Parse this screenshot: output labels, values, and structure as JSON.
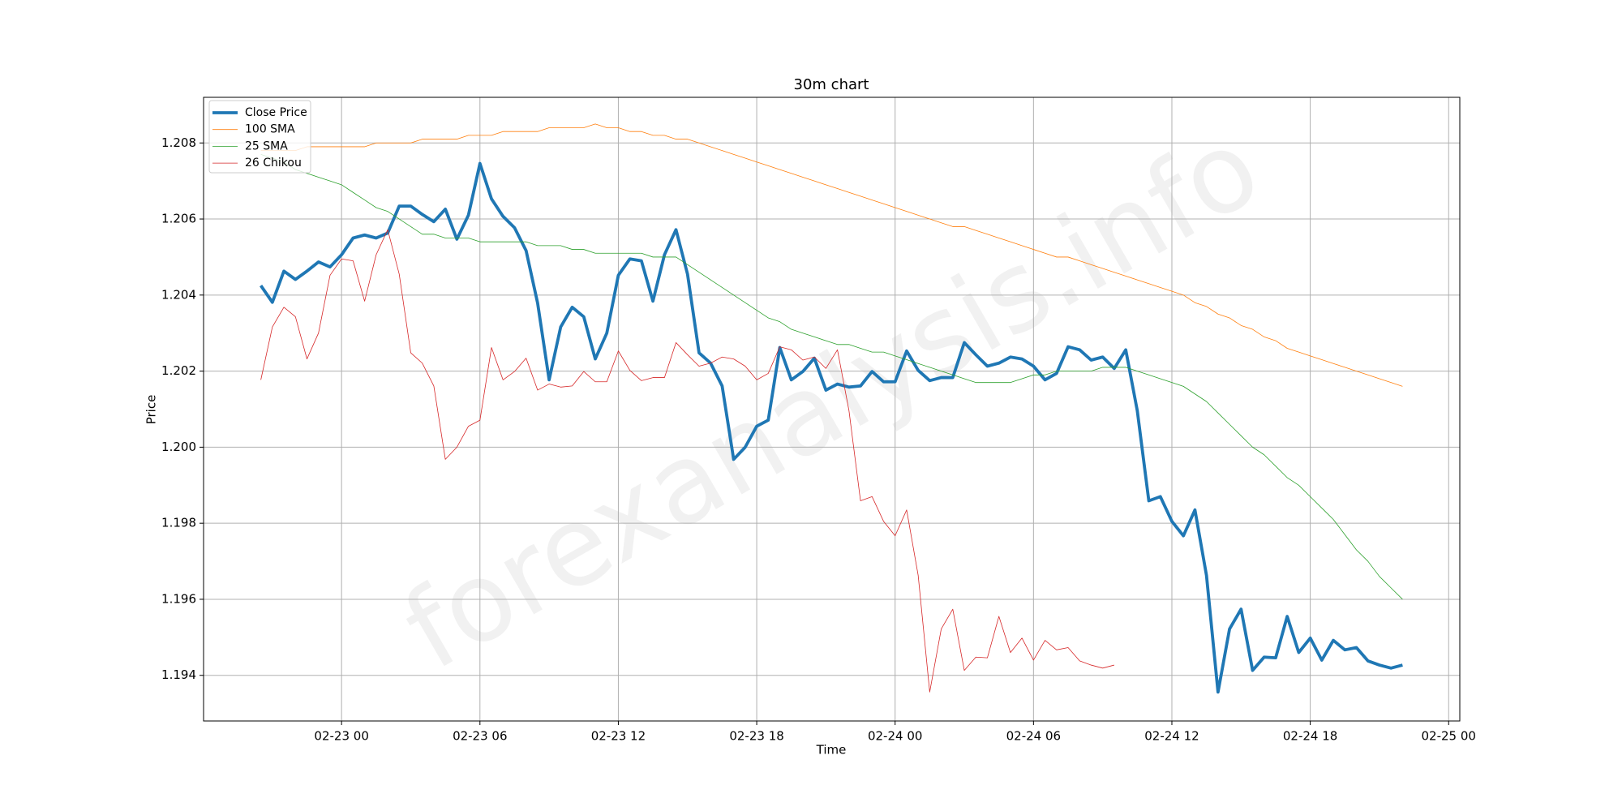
{
  "chart_data": {
    "type": "line",
    "title": "30m chart",
    "xlabel": "Time",
    "ylabel": "Price",
    "watermark": "forexanalysis.info",
    "x": [
      "02-22 20:30",
      "02-22 21:00",
      "02-22 21:30",
      "02-22 22:00",
      "02-22 22:30",
      "02-22 23:00",
      "02-22 23:30",
      "02-23 00:00",
      "02-23 00:30",
      "02-23 01:00",
      "02-23 01:30",
      "02-23 02:00",
      "02-23 02:30",
      "02-23 03:00",
      "02-23 03:30",
      "02-23 04:00",
      "02-23 04:30",
      "02-23 05:00",
      "02-23 05:30",
      "02-23 06:00",
      "02-23 06:30",
      "02-23 07:00",
      "02-23 07:30",
      "02-23 08:00",
      "02-23 08:30",
      "02-23 09:00",
      "02-23 09:30",
      "02-23 10:00",
      "02-23 10:30",
      "02-23 11:00",
      "02-23 11:30",
      "02-23 12:00",
      "02-23 12:30",
      "02-23 13:00",
      "02-23 13:30",
      "02-23 14:00",
      "02-23 14:30",
      "02-23 15:00",
      "02-23 15:30",
      "02-23 16:00",
      "02-23 16:30",
      "02-23 17:00",
      "02-23 17:30",
      "02-23 18:00",
      "02-23 18:30",
      "02-23 19:00",
      "02-23 19:30",
      "02-23 20:00",
      "02-23 20:30",
      "02-23 21:00",
      "02-23 21:30",
      "02-23 22:00",
      "02-23 22:30",
      "02-23 23:00",
      "02-23 23:30",
      "02-24 00:00",
      "02-24 00:30",
      "02-24 01:00",
      "02-24 01:30",
      "02-24 02:00",
      "02-24 02:30",
      "02-24 03:00",
      "02-24 03:30",
      "02-24 04:00",
      "02-24 04:30",
      "02-24 05:00",
      "02-24 05:30",
      "02-24 06:00",
      "02-24 06:30",
      "02-24 07:00",
      "02-24 07:30",
      "02-24 08:00",
      "02-24 08:30",
      "02-24 09:00",
      "02-24 09:30",
      "02-24 10:00",
      "02-24 10:30",
      "02-24 11:00",
      "02-24 11:30",
      "02-24 12:00",
      "02-24 12:30",
      "02-24 13:00",
      "02-24 13:30",
      "02-24 14:00",
      "02-24 14:30",
      "02-24 15:00",
      "02-24 15:30",
      "02-24 16:00",
      "02-24 16:30",
      "02-24 17:00",
      "02-24 17:30",
      "02-24 18:00",
      "02-24 18:30",
      "02-24 19:00",
      "02-24 19:30",
      "02-24 20:00",
      "02-24 20:30",
      "02-24 21:00",
      "02-24 21:30",
      "02-24 22:00"
    ],
    "series": [
      {
        "name": "Close Price",
        "color": "#1f77b4",
        "linewidth": 3.8,
        "values": [
          1.20425,
          1.20381,
          1.20463,
          1.20441,
          1.20463,
          1.20487,
          1.20474,
          1.20506,
          1.2055,
          1.20558,
          1.2055,
          1.20563,
          1.20634,
          1.20634,
          1.20612,
          1.20593,
          1.20626,
          1.20547,
          1.2061,
          1.20746,
          1.20653,
          1.20607,
          1.20577,
          1.20517,
          1.20379,
          1.20177,
          1.20316,
          1.20368,
          1.20343,
          1.20232,
          1.203,
          1.20452,
          1.20495,
          1.2049,
          1.20384,
          1.20506,
          1.20572,
          1.20455,
          1.20248,
          1.20221,
          1.20161,
          1.19968,
          1.2,
          1.20055,
          1.20071,
          1.20262,
          1.20177,
          1.20199,
          1.20234,
          1.2015,
          1.20166,
          1.20158,
          1.20161,
          1.20199,
          1.20172,
          1.20172,
          1.20253,
          1.20202,
          1.20175,
          1.20183,
          1.20183,
          1.20275,
          1.20243,
          1.20213,
          1.20221,
          1.20237,
          1.20232,
          1.20213,
          1.20177,
          1.20194,
          1.20264,
          1.20256,
          1.20229,
          1.20237,
          1.20207,
          1.20256,
          1.20096,
          1.19859,
          1.1987,
          1.19805,
          1.19767,
          1.19835,
          1.19663,
          1.19356,
          1.19522,
          1.19574,
          1.19413,
          1.19448,
          1.19446,
          1.19555,
          1.1946,
          1.19498,
          1.1944,
          1.19492,
          1.19467,
          1.19473,
          1.19438,
          1.19427,
          1.19419,
          1.19427
        ]
      },
      {
        "name": "100 SMA",
        "color": "#ff7f0e",
        "linewidth": 0.8,
        "values": [
          1.2078,
          1.2078,
          1.2078,
          1.2078,
          1.2079,
          1.2079,
          1.2079,
          1.2079,
          1.2079,
          1.2079,
          1.208,
          1.208,
          1.208,
          1.208,
          1.2081,
          1.2081,
          1.2081,
          1.2081,
          1.2082,
          1.2082,
          1.2082,
          1.2083,
          1.2083,
          1.2083,
          1.2083,
          1.2084,
          1.2084,
          1.2084,
          1.2084,
          1.2085,
          1.2084,
          1.2084,
          1.2083,
          1.2083,
          1.2082,
          1.2082,
          1.2081,
          1.2081,
          1.208,
          1.2079,
          1.2078,
          1.2077,
          1.2076,
          1.2075,
          1.2074,
          1.2073,
          1.2072,
          1.2071,
          1.207,
          1.2069,
          1.2068,
          1.2067,
          1.2066,
          1.2065,
          1.2064,
          1.2063,
          1.2062,
          1.2061,
          1.206,
          1.2059,
          1.2058,
          1.2058,
          1.2057,
          1.2056,
          1.2055,
          1.2054,
          1.2053,
          1.2052,
          1.2051,
          1.205,
          1.205,
          1.2049,
          1.2048,
          1.2047,
          1.2046,
          1.2045,
          1.2044,
          1.2043,
          1.2042,
          1.2041,
          1.204,
          1.2038,
          1.2037,
          1.2035,
          1.2034,
          1.2032,
          1.2031,
          1.2029,
          1.2028,
          1.2026,
          1.2025,
          1.2024,
          1.2023,
          1.2022,
          1.2021,
          1.202,
          1.2019,
          1.2018,
          1.2017,
          1.2016
        ]
      },
      {
        "name": "25 SMA",
        "color": "#2ca02c",
        "linewidth": 0.8,
        "values": [
          1.2077,
          1.2076,
          1.2075,
          1.2073,
          1.2072,
          1.2071,
          1.207,
          1.2069,
          1.2067,
          1.2065,
          1.2063,
          1.2062,
          1.206,
          1.2058,
          1.2056,
          1.2056,
          1.2055,
          1.2055,
          1.2055,
          1.2054,
          1.2054,
          1.2054,
          1.2054,
          1.2054,
          1.2053,
          1.2053,
          1.2053,
          1.2052,
          1.2052,
          1.2051,
          1.2051,
          1.2051,
          1.2051,
          1.2051,
          1.205,
          1.205,
          1.205,
          1.2048,
          1.2046,
          1.2044,
          1.2042,
          1.204,
          1.2038,
          1.2036,
          1.2034,
          1.2033,
          1.2031,
          1.203,
          1.2029,
          1.2028,
          1.2027,
          1.2027,
          1.2026,
          1.2025,
          1.2025,
          1.2024,
          1.2023,
          1.2022,
          1.2021,
          1.202,
          1.2019,
          1.2018,
          1.2017,
          1.2017,
          1.2017,
          1.2017,
          1.2018,
          1.2019,
          1.2019,
          1.202,
          1.202,
          1.202,
          1.202,
          1.2021,
          1.2021,
          1.2021,
          1.202,
          1.2019,
          1.2018,
          1.2017,
          1.2016,
          1.2014,
          1.2012,
          1.2009,
          1.2006,
          1.2003,
          1.2,
          1.1998,
          1.1995,
          1.1992,
          1.199,
          1.1987,
          1.1984,
          1.1981,
          1.1977,
          1.1973,
          1.197,
          1.1966,
          1.1963,
          1.196
        ]
      },
      {
        "name": "26 Chikou",
        "color": "#d62728",
        "linewidth": 0.8,
        "values": [
          1.20177,
          1.20316,
          1.20368,
          1.20343,
          1.20232,
          1.203,
          1.20452,
          1.20495,
          1.2049,
          1.20384,
          1.20506,
          1.20572,
          1.20455,
          1.20248,
          1.20221,
          1.20161,
          1.19968,
          1.2,
          1.20055,
          1.20071,
          1.20262,
          1.20177,
          1.20199,
          1.20234,
          1.2015,
          1.20166,
          1.20158,
          1.20161,
          1.20199,
          1.20172,
          1.20172,
          1.20253,
          1.20202,
          1.20175,
          1.20183,
          1.20183,
          1.20275,
          1.20243,
          1.20213,
          1.20221,
          1.20237,
          1.20232,
          1.20213,
          1.20177,
          1.20194,
          1.20264,
          1.20256,
          1.20229,
          1.20237,
          1.20207,
          1.20256,
          1.20096,
          1.19859,
          1.1987,
          1.19805,
          1.19767,
          1.19835,
          1.19663,
          1.19356,
          1.19522,
          1.19574,
          1.19413,
          1.19448,
          1.19446,
          1.19555,
          1.1946,
          1.19498,
          1.1944,
          1.19492,
          1.19467,
          1.19473,
          1.19438,
          1.19427,
          1.19419,
          1.19427,
          null,
          null,
          null,
          null,
          null,
          null,
          null,
          null,
          null,
          null,
          null,
          null,
          null,
          null,
          null,
          null,
          null,
          null,
          null,
          null,
          null,
          null,
          null,
          null,
          null
        ]
      }
    ],
    "xlim": [
      "02-22 18:01",
      "02-25 00:29"
    ],
    "xticks": [
      "02-23 00",
      "02-23 06",
      "02-23 12",
      "02-23 18",
      "02-24 00",
      "02-24 06",
      "02-24 12",
      "02-24 18",
      "02-25 00"
    ],
    "ylim": [
      1.1928,
      1.2092
    ],
    "yticks": [
      1.194,
      1.196,
      1.198,
      {
        "value": 1.2,
        "label": "1.200"
      },
      1.202,
      1.204,
      1.206,
      1.208
    ],
    "grid": true,
    "legend": "upper left"
  }
}
